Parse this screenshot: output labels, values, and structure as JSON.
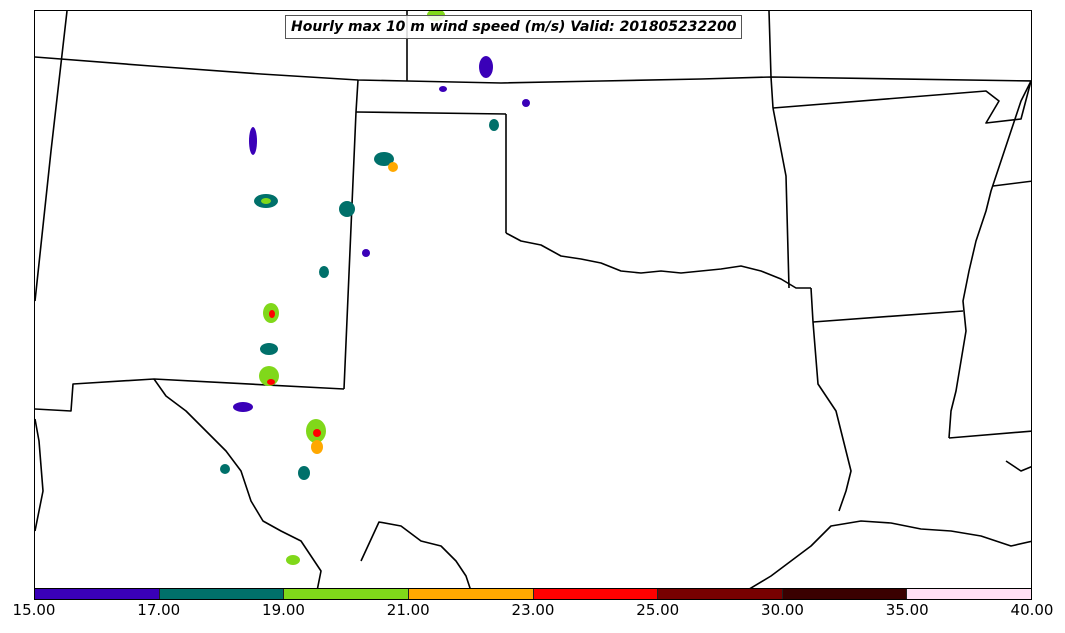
{
  "map": {
    "title": "Hourly max 10 m wind speed (m/s) Valid: 201805232200"
  },
  "colorbar": {
    "colors": [
      "#3a00b8",
      "#00706a",
      "#80d81a",
      "#ffa800",
      "#ff0000",
      "#780000",
      "#3a0000",
      "#ffe0f4"
    ],
    "labels": [
      "15.00",
      "17.00",
      "19.00",
      "21.00",
      "23.00",
      "25.00",
      "30.00",
      "35.00",
      "40.00"
    ]
  }
}
